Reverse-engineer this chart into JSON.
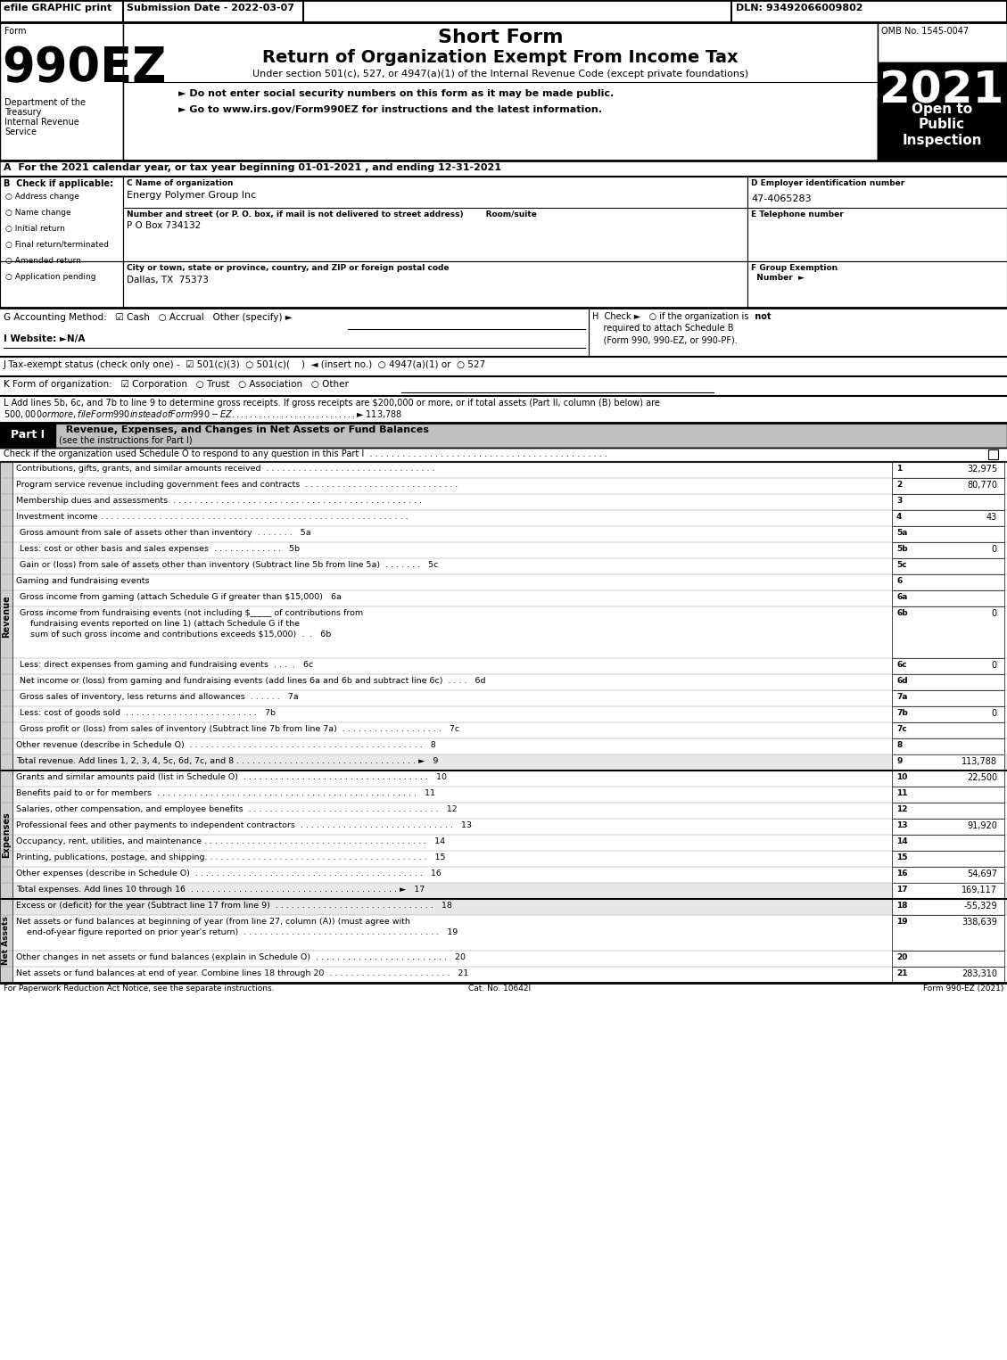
{
  "title_top": "Short Form",
  "title_main": "Return of Organization Exempt From Income Tax",
  "subtitle": "Under section 501(c), 527, or 4947(a)(1) of the Internal Revenue Code (except private foundations)",
  "year": "2021",
  "omb": "OMB No. 1545-0047",
  "efile_text": "efile GRAPHIC print",
  "submission_date": "Submission Date - 2022-03-07",
  "dln": "DLN: 93492066009802",
  "form_label": "Form",
  "form_number": "990EZ",
  "dept1": "Department of the",
  "dept2": "Treasury",
  "dept3": "Internal Revenue",
  "dept4": "Service",
  "open_to": "Open to\nPublic\nInspection",
  "bullet1": "► Do not enter social security numbers on this form as it may be made public.",
  "bullet2": "► Go to www.irs.gov/Form990EZ for instructions and the latest information.",
  "line_A": "A  For the 2021 calendar year, or tax year beginning 01-01-2021 , and ending 12-31-2021",
  "check_B": "B  Check if applicable:",
  "check_items": [
    "Address change",
    "Name change",
    "Initial return",
    "Final return/terminated",
    "Amended return",
    "Application pending"
  ],
  "label_C": "C Name of organization",
  "org_name": "Energy Polymer Group Inc",
  "label_address": "Number and street (or P. O. box, if mail is not delivered to street address)        Room/suite",
  "address": "P O Box 734132",
  "label_city": "City or town, state or province, country, and ZIP or foreign postal code",
  "city": "Dallas, TX  75373",
  "label_D": "D Employer identification number",
  "ein": "47-4065283",
  "label_E": "E Telephone number",
  "label_F": "F Group Exemption\n  Number  ►",
  "label_G": "G Accounting Method:   ☑ Cash   ○ Accrual   Other (specify) ►",
  "label_H": "H  Check ►   ○ if the organization is not\n    required to attach Schedule B\n    (Form 990, 990-EZ, or 990-PF).",
  "label_I": "I Website: ►N/A",
  "label_J": "J Tax-exempt status (check only one) -  ☑ 501(c)(3)  ○ 501(c)(    )  ◄ (insert no.)  ○ 4947(a)(1) or  ○ 527",
  "label_K": "K Form of organization:   ☑ Corporation   ○ Trust   ○ Association   ○ Other",
  "label_L": "L Add lines 5b, 6c, and 7b to line 9 to determine gross receipts. If gross receipts are $200,000 or more, or if total assets (Part II, column (B) below) are\n$500,000 or more, file Form 990 instead of Form 990-EZ . . . . . . . . . . . . . . . . . . . . . . . . . . . .  ►$ 113,788",
  "part1_header": "Part I    Revenue, Expenses, and Changes in Net Assets or Fund Balances (see the instructions for Part I)",
  "part1_check": "Check if the organization used Schedule O to respond to any question in this Part I  . . . . . . . . . . . . . . . . . . . . . . . . . . . . . . . . . . . . . . . . . . . .",
  "revenue_label": "Revenue",
  "expenses_label": "Expenses",
  "net_assets_label": "Net Assets",
  "lines": [
    {
      "num": "1",
      "desc": "Contributions, gifts, grants, and similar amounts received  . . . . . . . . . . . . . . . . . . . . . . . . . . . . . . . .",
      "val": "32,975"
    },
    {
      "num": "2",
      "desc": "Program service revenue including government fees and contracts  . . . . . . . . . . . . . . . . . . . . . . . . . . . . .",
      "val": "80,770"
    },
    {
      "num": "3",
      "desc": "Membership dues and assessments  . . . . . . . . . . . . . . . . . . . . . . . . . . . . . . . . . . . . . . . . . . . . . . .",
      "val": ""
    },
    {
      "num": "4",
      "desc": "Investment income . . . . . . . . . . . . . . . . . . . . . . . . . . . . . . . . . . . . . . . . . . . . . . . . . . . . . . . . . .",
      "val": "43"
    },
    {
      "num": "5a",
      "desc": "Gross amount from sale of assets other than inventory  . . . . . . .   5a",
      "val": ""
    },
    {
      "num": "5b",
      "desc": "Less: cost or other basis and sales expenses  . . . . . . . . . . . . .   5b",
      "val": "0"
    },
    {
      "num": "5c",
      "desc": "Gain or (loss) from sale of assets other than inventory (Subtract line 5b from line 5a)  . . . . . . .   5c",
      "val": ""
    },
    {
      "num": "6",
      "desc": "Gaming and fundraising events",
      "val": ""
    },
    {
      "num": "6a",
      "desc": "Gross income from gaming (attach Schedule G if greater than $15,000)   6a",
      "val": ""
    },
    {
      "num": "6b",
      "desc": "Gross income from fundraising events (not including $_____ of contributions from\n    fundraising events reported on line 1) (attach Schedule G if the\n    sum of such gross income and contributions exceeds $15,000)  .  .   6b",
      "val": "0"
    },
    {
      "num": "6c",
      "desc": "Less: direct expenses from gaming and fundraising events  . . .  .   6c",
      "val": "0"
    },
    {
      "num": "6d",
      "desc": "Net income or (loss) from gaming and fundraising events (add lines 6a and 6b and subtract line 6c)  . . . .   6d",
      "val": ""
    },
    {
      "num": "7a",
      "desc": "Gross sales of inventory, less returns and allowances  . . . . . .   7a",
      "val": ""
    },
    {
      "num": "7b",
      "desc": "Less: cost of goods sold  . . . . . . . . . . . . . . . . . . . . . . . . .   7b",
      "val": "0"
    },
    {
      "num": "7c",
      "desc": "Gross profit or (loss) from sales of inventory (Subtract line 7b from line 7a)  . . . . . . . . . . . . . . . . . . .   7c",
      "val": ""
    },
    {
      "num": "8",
      "desc": "Other revenue (describe in Schedule O)  . . . . . . . . . . . . . . . . . . . . . . . . . . . . . . . . . . . . . . . . . . . .   8",
      "val": ""
    },
    {
      "num": "9",
      "desc": "Total revenue. Add lines 1, 2, 3, 4, 5c, 6d, 7c, and 8 . . . . . . . . . . . . . . . . . . . . . . . . . . . . . . . . . . ►   9",
      "val": "113,788"
    },
    {
      "num": "10",
      "desc": "Grants and similar amounts paid (list in Schedule O)  . . . . . . . . . . . . . . . . . . . . . . . . . . . . . . . . . . .   10",
      "val": "22,500"
    },
    {
      "num": "11",
      "desc": "Benefits paid to or for members  . . . . . . . . . . . . . . . . . . . . . . . . . . . . . . . . . . . . . . . . . . . . . . . . .   11",
      "val": ""
    },
    {
      "num": "12",
      "desc": "Salaries, other compensation, and employee benefits  . . . . . . . . . . . . . . . . . . . . . . . . . . . . . . . . . . . .   12",
      "val": ""
    },
    {
      "num": "13",
      "desc": "Professional fees and other payments to independent contractors  . . . . . . . . . . . . . . . . . . . . . . . . . . . . .   13",
      "val": "91,920"
    },
    {
      "num": "14",
      "desc": "Occupancy, rent, utilities, and maintenance . . . . . . . . . . . . . . . . . . . . . . . . . . . . . . . . . . . . . . . . . .   14",
      "val": ""
    },
    {
      "num": "15",
      "desc": "Printing, publications, postage, and shipping. . . . . . . . . . . . . . . . . . . . . . . . . . . . . . . . . . . . . . . . . .   15",
      "val": ""
    },
    {
      "num": "16",
      "desc": "Other expenses (describe in Schedule O)  . . . . . . . . . . . . . . . . . . . . . . . . . . . . . . . . . . . . . . . . . . .   16",
      "val": "54,697"
    },
    {
      "num": "17",
      "desc": "Total expenses. Add lines 10 through 16  . . . . . . . . . . . . . . . . . . . . . . . . . . . . . . . . . . . . . . . ►   17",
      "val": "169,117"
    },
    {
      "num": "18",
      "desc": "Excess or (deficit) for the year (Subtract line 17 from line 9)  . . . . . . . . . . . . . . . . . . . . . . . . . . . . . .   18",
      "val": "-55,329"
    },
    {
      "num": "19",
      "desc": "Net assets or fund balances at beginning of year (from line 27, column (A)) (must agree with\n    end-of-year figure reported on prior year's return)  . . . . . . . . . . . . . . . . . . . . . . . . . . . . . . . . . . . . .   19",
      "val": "338,639"
    },
    {
      "num": "20",
      "desc": "Other changes in net assets or fund balances (explain in Schedule O)  . . . . . . . . . . . . . . . . . . . . . . . . .   20",
      "val": ""
    },
    {
      "num": "21",
      "desc": "Net assets or fund balances at end of year. Combine lines 18 through 20  . . . . . . . . . . . . . . . . . . . . . . .   21",
      "val": "283,310"
    }
  ],
  "footer_left": "For Paperwork Reduction Act Notice, see the separate instructions.",
  "footer_cat": "Cat. No. 10642I",
  "footer_right": "Form 990-EZ (2021)"
}
